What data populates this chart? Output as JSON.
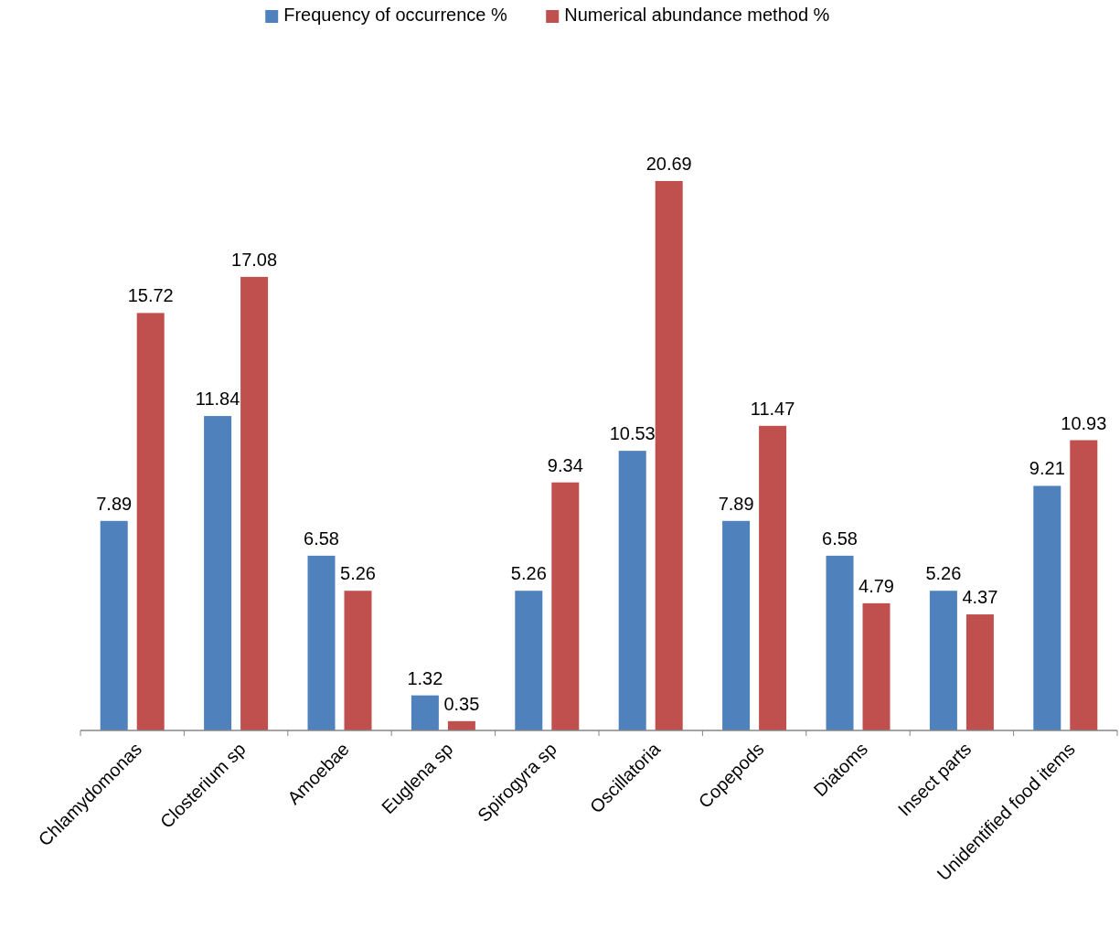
{
  "chart_data": {
    "type": "bar",
    "categories": [
      "Chlamydomonas",
      "Closterium sp",
      "Amoebae",
      "Euglena sp",
      "Spirogyra sp",
      "Oscillatoria",
      "Copepods",
      "Diatoms",
      "Insect parts",
      "Unidentified food items"
    ],
    "series": [
      {
        "name": "Frequency of occurrence %",
        "color": "#4f81bd",
        "values": [
          7.89,
          11.84,
          6.58,
          1.32,
          5.26,
          10.53,
          7.89,
          6.58,
          5.26,
          9.21
        ]
      },
      {
        "name": "Numerical abundance method %",
        "color": "#c0504d",
        "values": [
          15.72,
          17.08,
          5.26,
          0.35,
          9.34,
          20.69,
          11.47,
          4.79,
          4.37,
          10.93
        ]
      }
    ],
    "data_labels": true,
    "legend": "top"
  }
}
